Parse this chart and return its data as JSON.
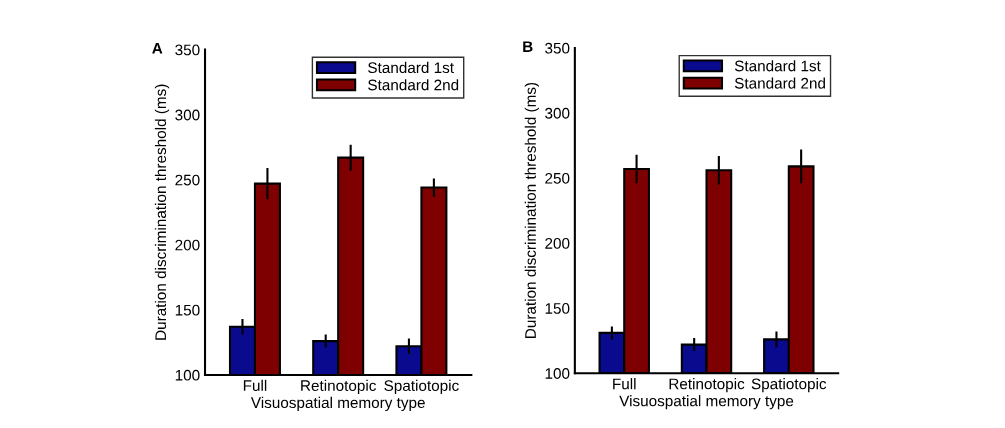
{
  "chart_data": [
    {
      "type": "bar",
      "annotations": [
        "A"
      ],
      "xlabel": "Visuospatial memory type",
      "ylabel": "Duration discrimination threshold (ms)",
      "categories": [
        "Full",
        "Retinotopic",
        "Spatiotopic"
      ],
      "ylim": [
        100,
        350
      ],
      "yticks": [
        100,
        150,
        200,
        250,
        300,
        350
      ],
      "legend": "top right",
      "grid": false,
      "series": [
        {
          "name": "Standard 1st",
          "color": "#0a0a8f",
          "values": [
            137,
            126,
            122
          ],
          "errors": [
            6,
            5,
            6
          ]
        },
        {
          "name": "Standard 2nd",
          "color": "#7f0000",
          "values": [
            247,
            267,
            244
          ],
          "errors": [
            12,
            10,
            7
          ]
        }
      ]
    },
    {
      "type": "bar",
      "annotations": [
        "B"
      ],
      "xlabel": "Visuospatial memory type",
      "ylabel": "Duration discrimination threshold (ms)",
      "categories": [
        "Full",
        "Retinotopic",
        "Spatiotopic"
      ],
      "ylim": [
        100,
        350
      ],
      "yticks": [
        100,
        150,
        200,
        250,
        300,
        350
      ],
      "legend": "top right",
      "grid": false,
      "series": [
        {
          "name": "Standard 1st",
          "color": "#0a0a8f",
          "values": [
            131,
            122,
            126
          ],
          "errors": [
            5,
            5,
            6
          ]
        },
        {
          "name": "Standard 2nd",
          "color": "#7f0000",
          "values": [
            257,
            256,
            259
          ],
          "errors": [
            11,
            11,
            13
          ]
        }
      ]
    }
  ]
}
